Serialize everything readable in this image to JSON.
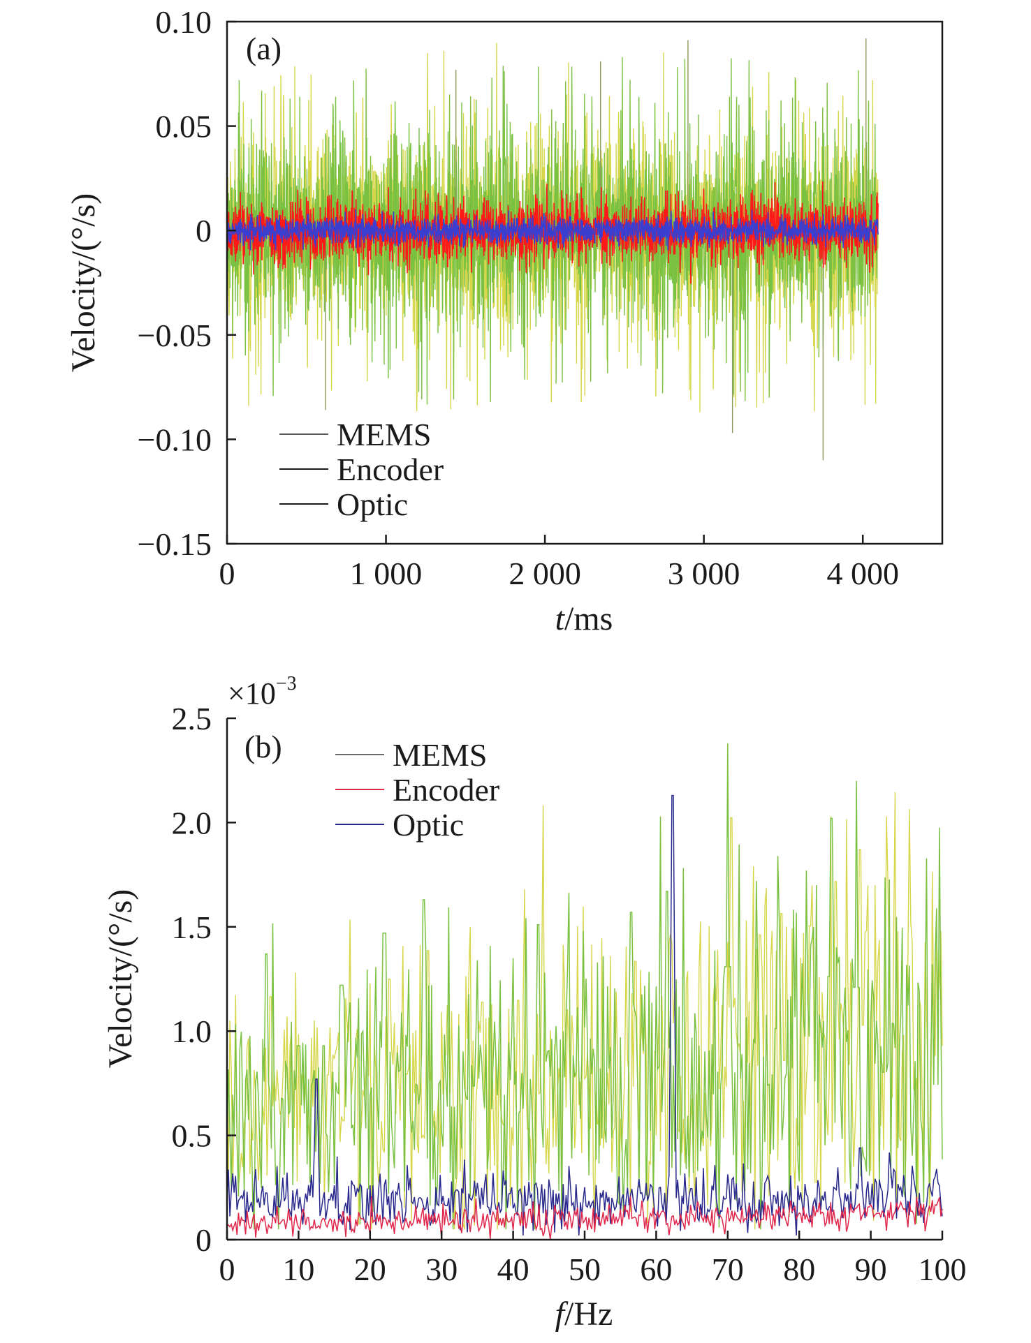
{
  "chart_data": [
    {
      "type": "line",
      "panel_label": "(a)",
      "xlabel_var": "t",
      "xlabel_unit": "/ms",
      "ylabel": "Velocity/(°/s)",
      "xlim": [
        0,
        4500
      ],
      "ylim": [
        -0.15,
        0.1
      ],
      "xticks": [
        0,
        1000,
        2000,
        3000,
        4000
      ],
      "xtick_labels": [
        "0",
        "1 000",
        "2 000",
        "3 000",
        "4 000"
      ],
      "yticks": [
        0.1,
        0.05,
        0,
        -0.05,
        -0.1,
        -0.15
      ],
      "ytick_labels": [
        "0.10",
        "0.05",
        "0",
        "−0.05",
        "−0.10",
        "−0.15"
      ],
      "grid": false,
      "legend_position": "bottom-left",
      "x_range": [
        0,
        4096
      ],
      "series": [
        {
          "name": "MEMS",
          "color": "#7ac142",
          "alt_color": "#d6d64a",
          "amplitude": 0.022,
          "spike_max": 0.093,
          "spike_min": -0.11
        },
        {
          "name": "Encoder",
          "color": "#ff1a1a",
          "amplitude": 0.0075
        },
        {
          "name": "Optic",
          "color": "#3a3fd0",
          "amplitude": 0.0032
        }
      ]
    },
    {
      "type": "line",
      "panel_label": "(b)",
      "xlabel_var": "f",
      "xlabel_unit": "/Hz",
      "ylabel": "Velocity/(°/s)",
      "y_exponent": "×10",
      "y_exponent_power": "−3",
      "xlim": [
        0,
        100
      ],
      "ylim": [
        0,
        2.5
      ],
      "xticks": [
        0,
        10,
        20,
        30,
        40,
        50,
        60,
        70,
        80,
        90,
        100
      ],
      "xtick_labels": [
        "0",
        "10",
        "20",
        "30",
        "40",
        "50",
        "60",
        "70",
        "80",
        "90",
        "100"
      ],
      "yticks": [
        2.5,
        2.0,
        1.5,
        1.0,
        0.5,
        0
      ],
      "ytick_labels": [
        "2.5",
        "2.0",
        "1.5",
        "1.0",
        "0.5",
        "0"
      ],
      "grid": false,
      "legend_position": "top-left",
      "x_range": [
        0,
        100
      ],
      "series": [
        {
          "name": "MEMS",
          "color": "#7ac142",
          "alt_color": "#d6d64a",
          "peaks": [
            [
              5.5,
              1.37
            ],
            [
              10,
              0.93
            ],
            [
              13.5,
              0.93
            ],
            [
              16,
              1.22
            ],
            [
              22,
              1.47
            ],
            [
              27.5,
              1.63
            ],
            [
              35,
              1.34
            ],
            [
              40,
              1.35
            ],
            [
              43.5,
              1.51
            ],
            [
              56.5,
              1.57
            ],
            [
              61.5,
              1.67
            ],
            [
              70,
              2.38
            ],
            [
              74,
              1.72
            ],
            [
              77,
              1.84
            ],
            [
              81,
              1.77
            ],
            [
              84.5,
              2.02
            ],
            [
              88,
              2.2
            ],
            [
              92,
              1.46
            ],
            [
              99,
              1.35
            ]
          ]
        },
        {
          "name": "Encoder",
          "color": "#e0264a",
          "level": 0.07
        },
        {
          "name": "Optic",
          "color": "#28288c",
          "level": 0.19,
          "peaks": [
            [
              12.5,
              0.77
            ],
            [
              62.3,
              2.13
            ],
            [
              88.5,
              0.44
            ]
          ]
        }
      ]
    }
  ]
}
